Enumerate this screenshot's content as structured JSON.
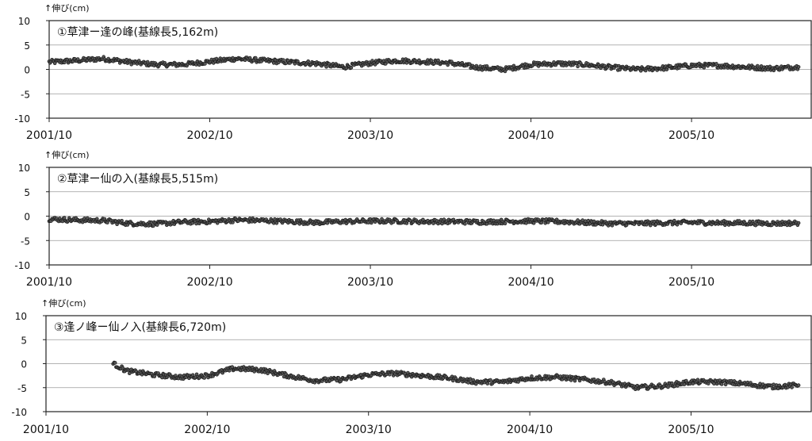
{
  "chart_data": [
    {
      "type": "scatter",
      "title": "①草津ー逢の峰(基線長5,162m)",
      "ylabel": "↑伸び(cm)",
      "xlabel": "",
      "ylim": [
        -10,
        10
      ],
      "yticks": [
        10,
        5,
        0,
        -5,
        -10
      ],
      "xlim": [
        "2001/10",
        "2006/07"
      ],
      "xticks": [
        "2001/10",
        "2002/10",
        "2003/10",
        "2004/10",
        "2005/10"
      ],
      "grid": true,
      "series": [
        {
          "marker": "circle",
          "color": "#333333",
          "points": [
            [
              "2001/10",
              1.5
            ],
            [
              "2001/12",
              1.8
            ],
            [
              "2002/02",
              2.2
            ],
            [
              "2002/04",
              1.5
            ],
            [
              "2002/06",
              1.0
            ],
            [
              "2002/08",
              1.0
            ],
            [
              "2002/10",
              1.6
            ],
            [
              "2002/12",
              2.2
            ],
            [
              "2003/02",
              1.8
            ],
            [
              "2003/04",
              1.5
            ],
            [
              "2003/06",
              1.2
            ],
            [
              "2003/08",
              0.5
            ],
            [
              "2003/10",
              1.3
            ],
            [
              "2003/12",
              1.8
            ],
            [
              "2004/02",
              1.6
            ],
            [
              "2004/04",
              1.3
            ],
            [
              "2004/06",
              0.4
            ],
            [
              "2004/08",
              0.0
            ],
            [
              "2004/10",
              1.0
            ],
            [
              "2004/12",
              1.2
            ],
            [
              "2005/02",
              1.0
            ],
            [
              "2005/04",
              0.4
            ],
            [
              "2005/06",
              0.0
            ],
            [
              "2005/08",
              0.3
            ],
            [
              "2005/10",
              0.8
            ],
            [
              "2005/12",
              0.8
            ],
            [
              "2006/02",
              0.5
            ],
            [
              "2006/04",
              0.2
            ],
            [
              "2006/06",
              0.5
            ]
          ]
        }
      ]
    },
    {
      "type": "scatter",
      "title": "②草津ー仙の入(基線長5,515m)",
      "ylabel": "↑伸び(cm)",
      "xlabel": "",
      "ylim": [
        -10,
        10
      ],
      "yticks": [
        10,
        5,
        0,
        -5,
        -10
      ],
      "xlim": [
        "2001/10",
        "2006/07"
      ],
      "xticks": [
        "2001/10",
        "2002/10",
        "2003/10",
        "2004/10",
        "2005/10"
      ],
      "grid": true,
      "series": [
        {
          "marker": "circle",
          "color": "#333333",
          "points": [
            [
              "2001/10",
              -0.6
            ],
            [
              "2001/12",
              -0.8
            ],
            [
              "2002/02",
              -0.9
            ],
            [
              "2002/04",
              -1.5
            ],
            [
              "2002/06",
              -1.6
            ],
            [
              "2002/08",
              -1.2
            ],
            [
              "2002/10",
              -1.1
            ],
            [
              "2002/12",
              -0.8
            ],
            [
              "2003/02",
              -0.9
            ],
            [
              "2003/04",
              -1.1
            ],
            [
              "2003/06",
              -1.3
            ],
            [
              "2003/08",
              -1.1
            ],
            [
              "2003/10",
              -1.0
            ],
            [
              "2003/12",
              -1.0
            ],
            [
              "2004/02",
              -1.1
            ],
            [
              "2004/04",
              -1.1
            ],
            [
              "2004/06",
              -1.2
            ],
            [
              "2004/08",
              -1.1
            ],
            [
              "2004/10",
              -1.0
            ],
            [
              "2004/12",
              -1.1
            ],
            [
              "2005/02",
              -1.3
            ],
            [
              "2005/04",
              -1.5
            ],
            [
              "2005/06",
              -1.5
            ],
            [
              "2005/08",
              -1.4
            ],
            [
              "2005/10",
              -1.3
            ],
            [
              "2005/12",
              -1.4
            ],
            [
              "2006/02",
              -1.4
            ],
            [
              "2006/04",
              -1.5
            ],
            [
              "2006/06",
              -1.4
            ]
          ]
        }
      ]
    },
    {
      "type": "scatter",
      "title": "③逢ノ峰ー仙ノ入(基線長6,720m)",
      "ylabel": "↑伸び(cm)",
      "xlabel": "",
      "ylim": [
        -10,
        10
      ],
      "yticks": [
        10,
        5,
        0,
        -5,
        -10
      ],
      "xlim": [
        "2001/10",
        "2006/07"
      ],
      "xticks": [
        "2001/10",
        "2002/10",
        "2003/10",
        "2004/10",
        "2005/10"
      ],
      "grid": true,
      "series": [
        {
          "marker": "circle",
          "color": "#333333",
          "points": [
            [
              "2002/03",
              0.0
            ],
            [
              "2002/04",
              -1.5
            ],
            [
              "2002/06",
              -2.3
            ],
            [
              "2002/08",
              -2.8
            ],
            [
              "2002/10",
              -2.5
            ],
            [
              "2002/12",
              -1.0
            ],
            [
              "2003/02",
              -1.3
            ],
            [
              "2003/04",
              -2.5
            ],
            [
              "2003/06",
              -3.5
            ],
            [
              "2003/08",
              -3.3
            ],
            [
              "2003/10",
              -2.3
            ],
            [
              "2003/12",
              -2.0
            ],
            [
              "2004/02",
              -2.5
            ],
            [
              "2004/04",
              -3.0
            ],
            [
              "2004/06",
              -3.8
            ],
            [
              "2004/08",
              -3.8
            ],
            [
              "2004/10",
              -3.0
            ],
            [
              "2004/12",
              -2.8
            ],
            [
              "2005/02",
              -3.3
            ],
            [
              "2005/04",
              -3.9
            ],
            [
              "2005/06",
              -5.0
            ],
            [
              "2005/08",
              -4.6
            ],
            [
              "2005/10",
              -3.8
            ],
            [
              "2005/12",
              -3.8
            ],
            [
              "2006/02",
              -4.2
            ],
            [
              "2006/04",
              -4.8
            ],
            [
              "2006/06",
              -4.5
            ]
          ]
        }
      ]
    }
  ]
}
